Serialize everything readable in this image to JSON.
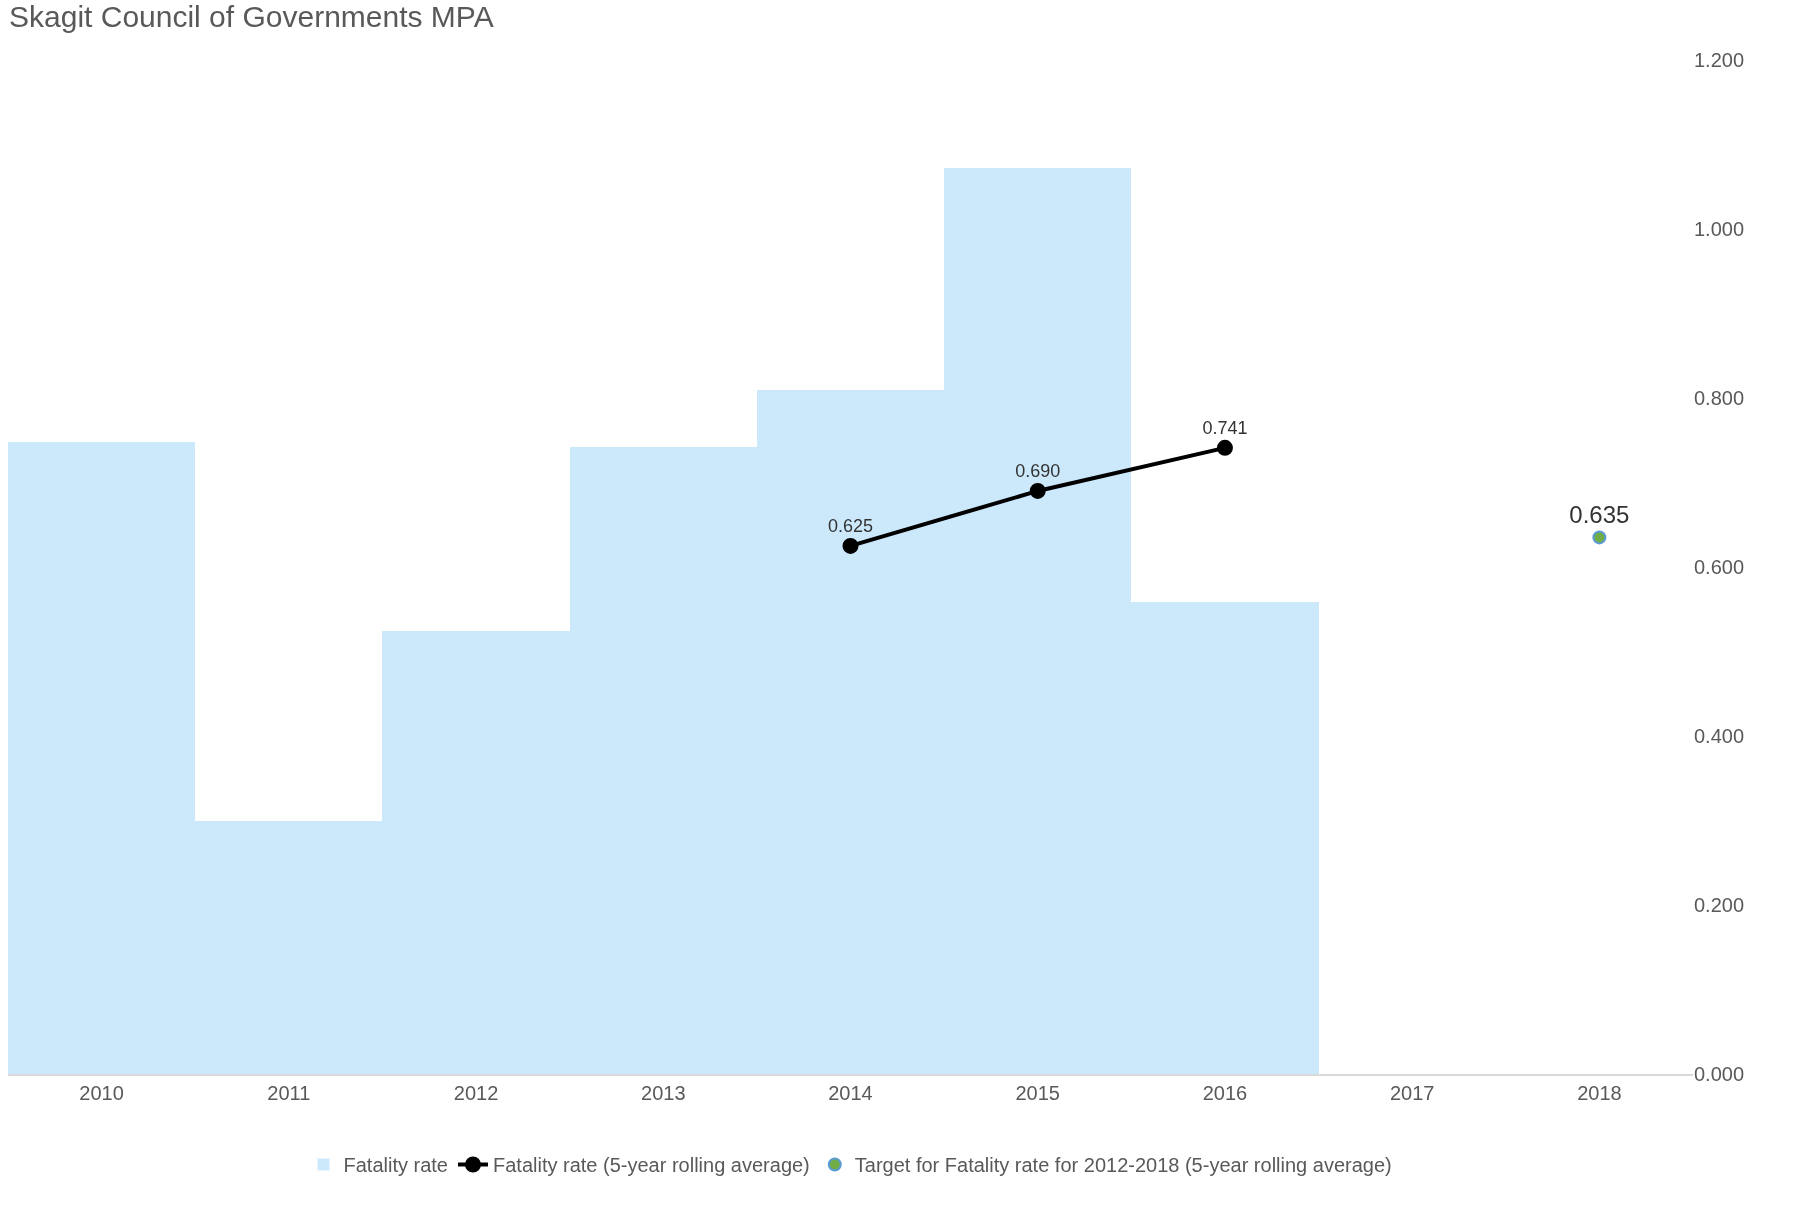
{
  "chart_data": {
    "type": "bar",
    "title": "Skagit Council of Governments MPA",
    "categories": [
      "2010",
      "2011",
      "2012",
      "2013",
      "2014",
      "2015",
      "2016",
      "2017",
      "2018"
    ],
    "series": [
      {
        "name": "Fatality rate",
        "color": "#cce9fc",
        "values": [
          0.748,
          0.3,
          0.524,
          0.742,
          0.81,
          1.072,
          0.558,
          null,
          null
        ]
      },
      {
        "name": "Fatality rate (5-year rolling average)",
        "type": "line",
        "color": "#000000",
        "marker": "circle",
        "values": [
          null,
          null,
          null,
          null,
          0.625,
          0.69,
          0.741,
          null,
          null
        ],
        "value_labels": [
          null,
          null,
          null,
          null,
          "0.625",
          "0.690",
          "0.741",
          null,
          null
        ]
      },
      {
        "name": "Target for Fatality rate for 2012-2018 (5-year rolling average)",
        "type": "scatter",
        "color": "#70ad47",
        "marker": "circle",
        "values": [
          null,
          null,
          null,
          null,
          null,
          null,
          null,
          null,
          0.635
        ],
        "value_labels": [
          null,
          null,
          null,
          null,
          null,
          null,
          null,
          null,
          "0.635"
        ]
      }
    ],
    "ylim": [
      0,
      1.2
    ],
    "yticks": [
      {
        "value": 0,
        "label": "0.000"
      },
      {
        "value": 0.2,
        "label": "0.200"
      },
      {
        "value": 0.4,
        "label": "0.400"
      },
      {
        "value": 0.6,
        "label": "0.600"
      },
      {
        "value": 0.8,
        "label": "0.800"
      },
      {
        "value": 1.0,
        "label": "1.000"
      },
      {
        "value": 1.2,
        "label": "1.200"
      }
    ],
    "legend": "bottom"
  }
}
